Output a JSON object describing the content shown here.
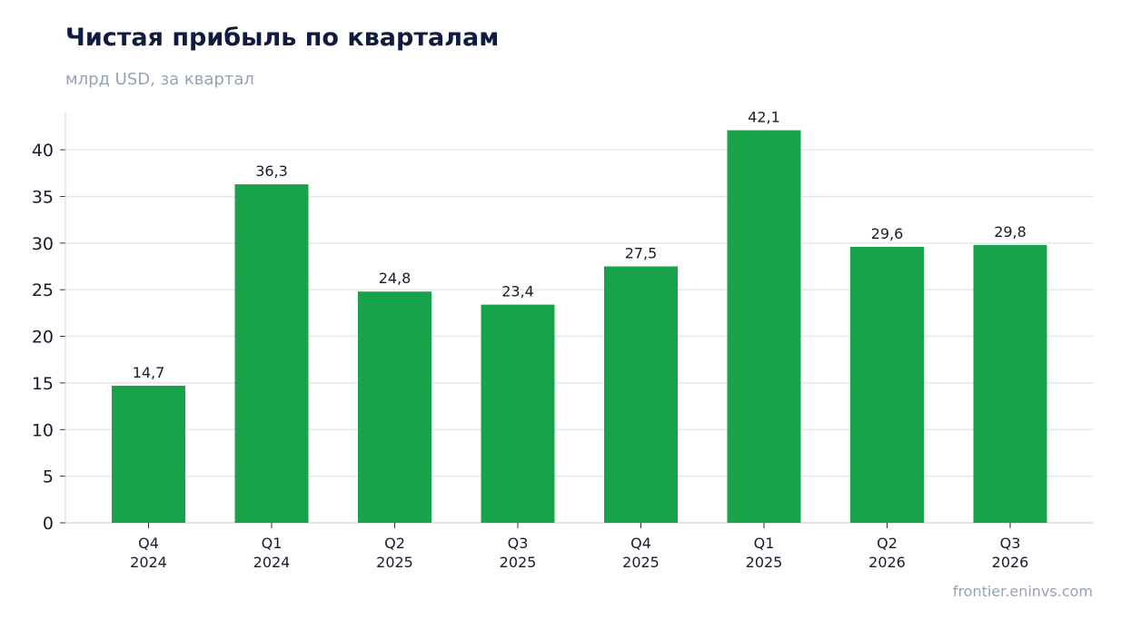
{
  "header": {
    "title": "Чистая прибыль по кварталам",
    "subtitle": "млрд USD, за квартал"
  },
  "footer": {
    "source": "frontier.eninvs.com"
  },
  "colors": {
    "bar": "#18a34a",
    "grid": "#e2e8f0",
    "axis": "#cbd5e1",
    "title": "#0f1c40",
    "muted": "#94a3b8"
  },
  "chart_data": {
    "type": "bar",
    "title": "Чистая прибыль по кварталам",
    "subtitle": "млрд USD, за квартал",
    "categories": [
      [
        "Q4",
        "2024"
      ],
      [
        "Q1",
        "2024"
      ],
      [
        "Q2",
        "2025"
      ],
      [
        "Q3",
        "2025"
      ],
      [
        "Q4",
        "2025"
      ],
      [
        "Q1",
        "2025"
      ],
      [
        "Q2",
        "2026"
      ],
      [
        "Q3",
        "2026"
      ]
    ],
    "values": [
      14.7,
      36.3,
      24.8,
      23.4,
      27.5,
      42.1,
      29.6,
      29.8
    ],
    "data_labels": [
      "14,7",
      "36,3",
      "24,8",
      "23,4",
      "27,5",
      "42,1",
      "29,6",
      "29,8"
    ],
    "y_ticks": [
      0,
      5,
      10,
      15,
      20,
      25,
      30,
      35,
      40
    ],
    "ylim": [
      0,
      44
    ],
    "grid": "horizontal",
    "legend": "none"
  }
}
